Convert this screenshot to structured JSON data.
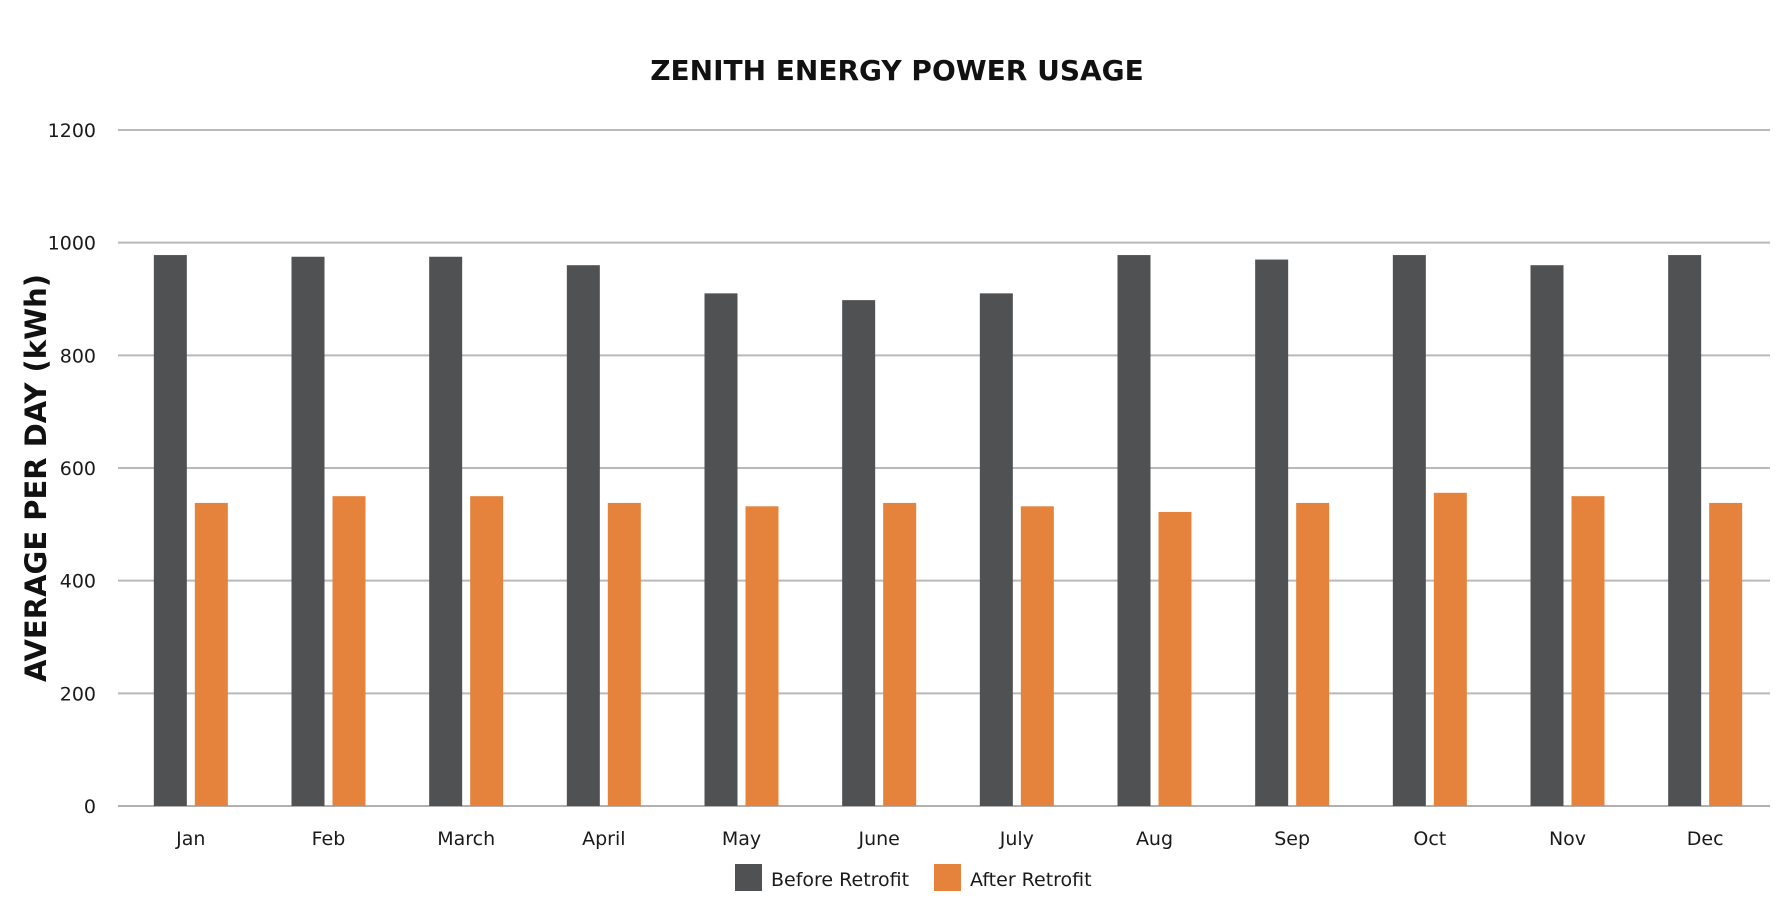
{
  "chart_data": {
    "type": "bar",
    "title": "ZENITH ENERGY POWER USAGE",
    "xlabel": "",
    "ylabel": "AVERAGE PER DAY (kWh)",
    "ylim": [
      0,
      1200
    ],
    "yticks": [
      0,
      200,
      400,
      600,
      800,
      1000,
      1200
    ],
    "grid": true,
    "legend_position": "bottom-center",
    "categories": [
      "Jan",
      "Feb",
      "March",
      "April",
      "May",
      "June",
      "July",
      "Aug",
      "Sep",
      "Oct",
      "Nov",
      "Dec"
    ],
    "series": [
      {
        "name": "Before Retrofit",
        "color": "#505153",
        "values": [
          978,
          975,
          975,
          960,
          910,
          898,
          910,
          978,
          970,
          978,
          960,
          978
        ]
      },
      {
        "name": "After Retrofit",
        "color": "#E5833D",
        "values": [
          538,
          550,
          550,
          538,
          532,
          538,
          532,
          522,
          538,
          556,
          550,
          538
        ]
      }
    ]
  }
}
